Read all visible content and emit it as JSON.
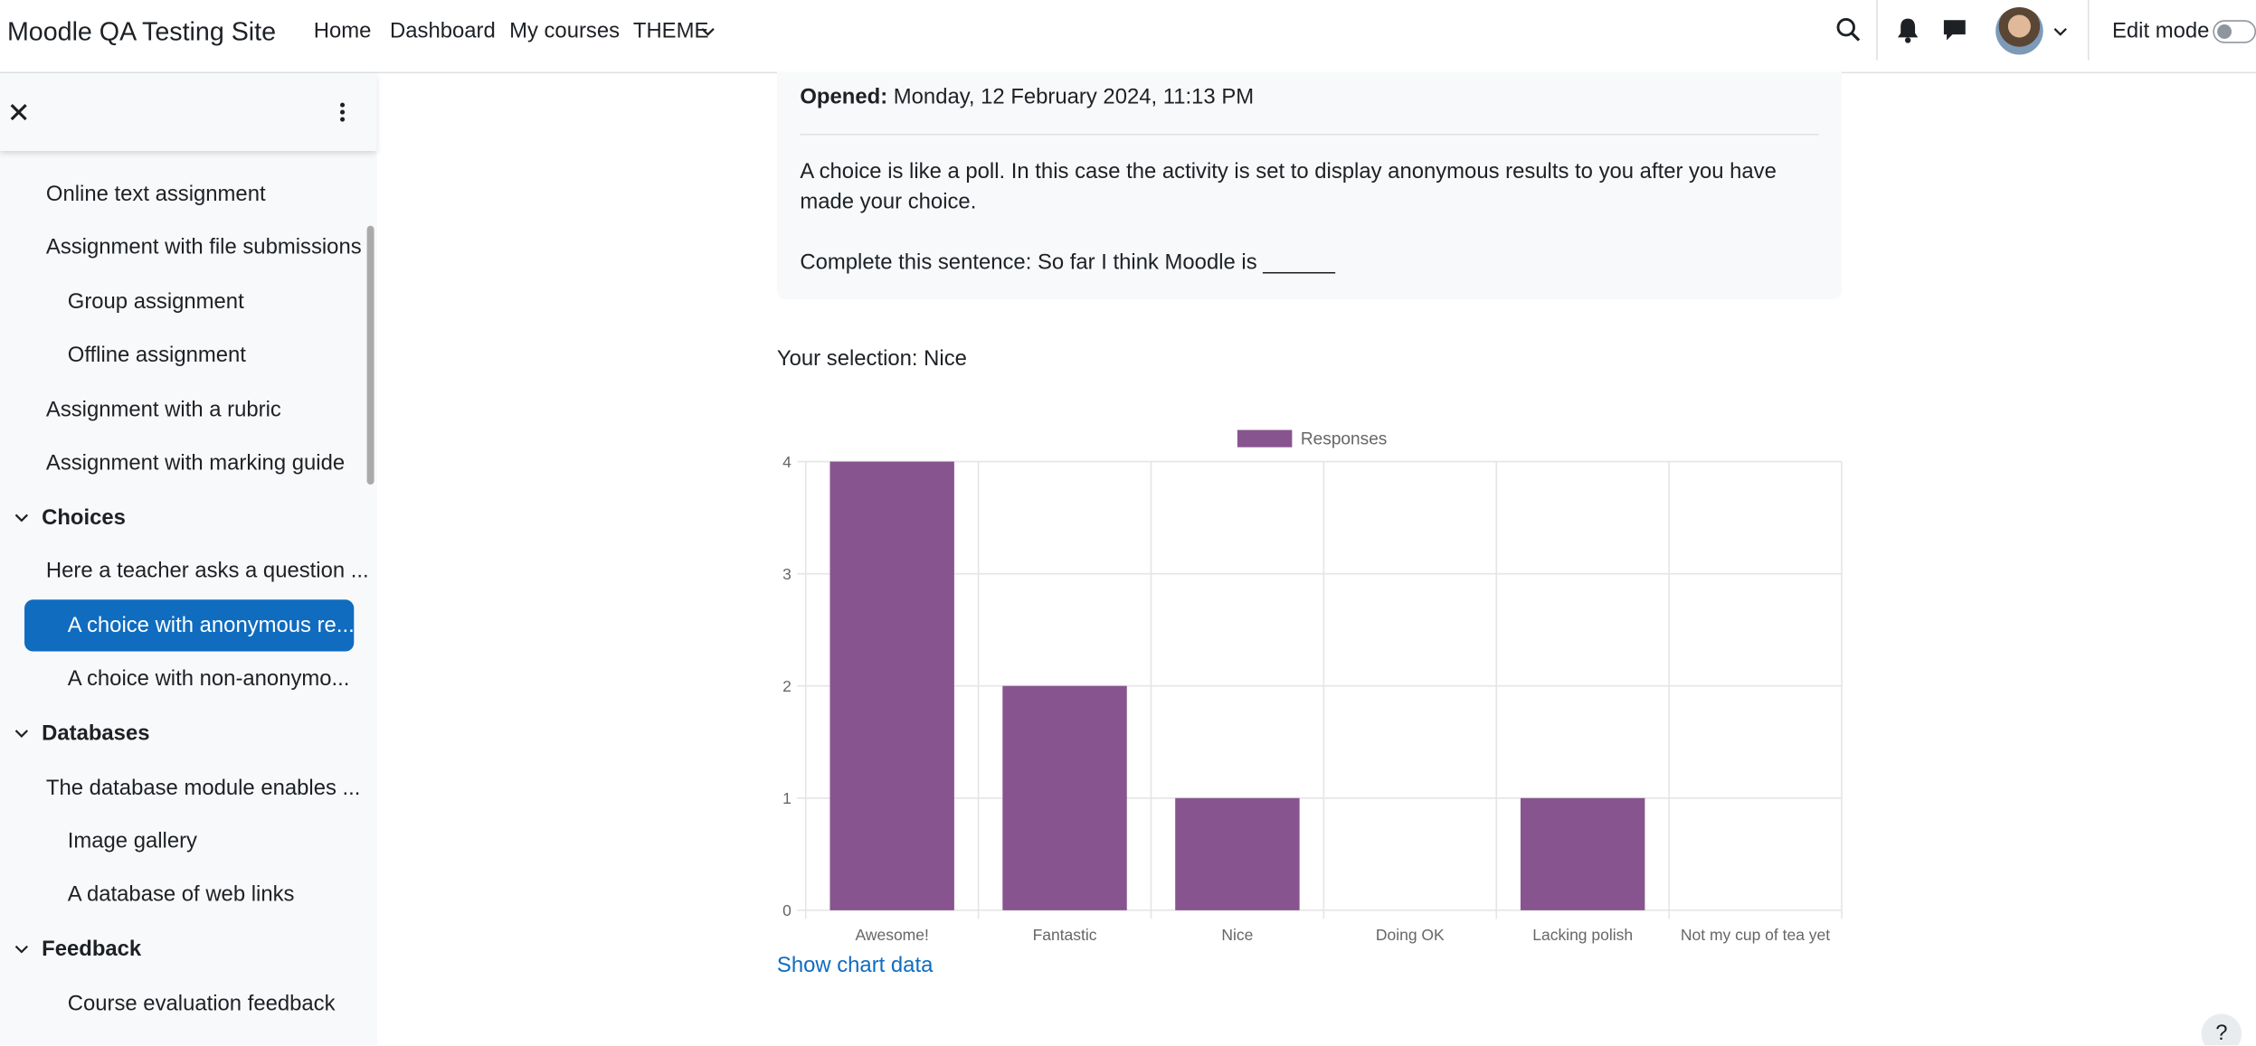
{
  "navbar": {
    "site_name": "Moodle QA Testing Site",
    "links": [
      "Home",
      "Dashboard",
      "My courses",
      "THEME"
    ],
    "edit_mode": "Edit mode"
  },
  "sidebar": {
    "items": [
      "Online text assignment",
      "Assignment with file submissions",
      "Group assignment",
      "Offline assignment",
      "Assignment with a rubric",
      "Assignment with marking guide",
      "Choices",
      "Here a teacher asks a question ...",
      "A choice with anonymous re...",
      "A choice with non-anonymo...",
      "Databases",
      "The database module enables ...",
      "Image gallery",
      "A database of web links",
      "Feedback",
      "Course evaluation feedback"
    ]
  },
  "content": {
    "opened_label": "Opened:",
    "opened_value": "Monday, 12 February 2024, 11:13 PM",
    "description": "A choice is like a poll. In this case the activity is set to display anonymous results to you after you have made your choice.",
    "question": "Complete this sentence: So far I think Moodle is ______",
    "selection": "Your selection: Nice",
    "show_chart_data": "Show chart data"
  },
  "chart_data": {
    "type": "bar",
    "categories": [
      "Awesome!",
      "Fantastic",
      "Nice",
      "Doing OK",
      "Lacking polish",
      "Not my cup of tea yet"
    ],
    "series": [
      {
        "name": "Responses",
        "color": "#88548f",
        "values": [
          4,
          2,
          1,
          0,
          1,
          0
        ]
      }
    ],
    "ylim": [
      0,
      4
    ],
    "yticks": [
      0,
      1,
      2,
      3,
      4
    ],
    "grid": true,
    "legend": "top"
  }
}
